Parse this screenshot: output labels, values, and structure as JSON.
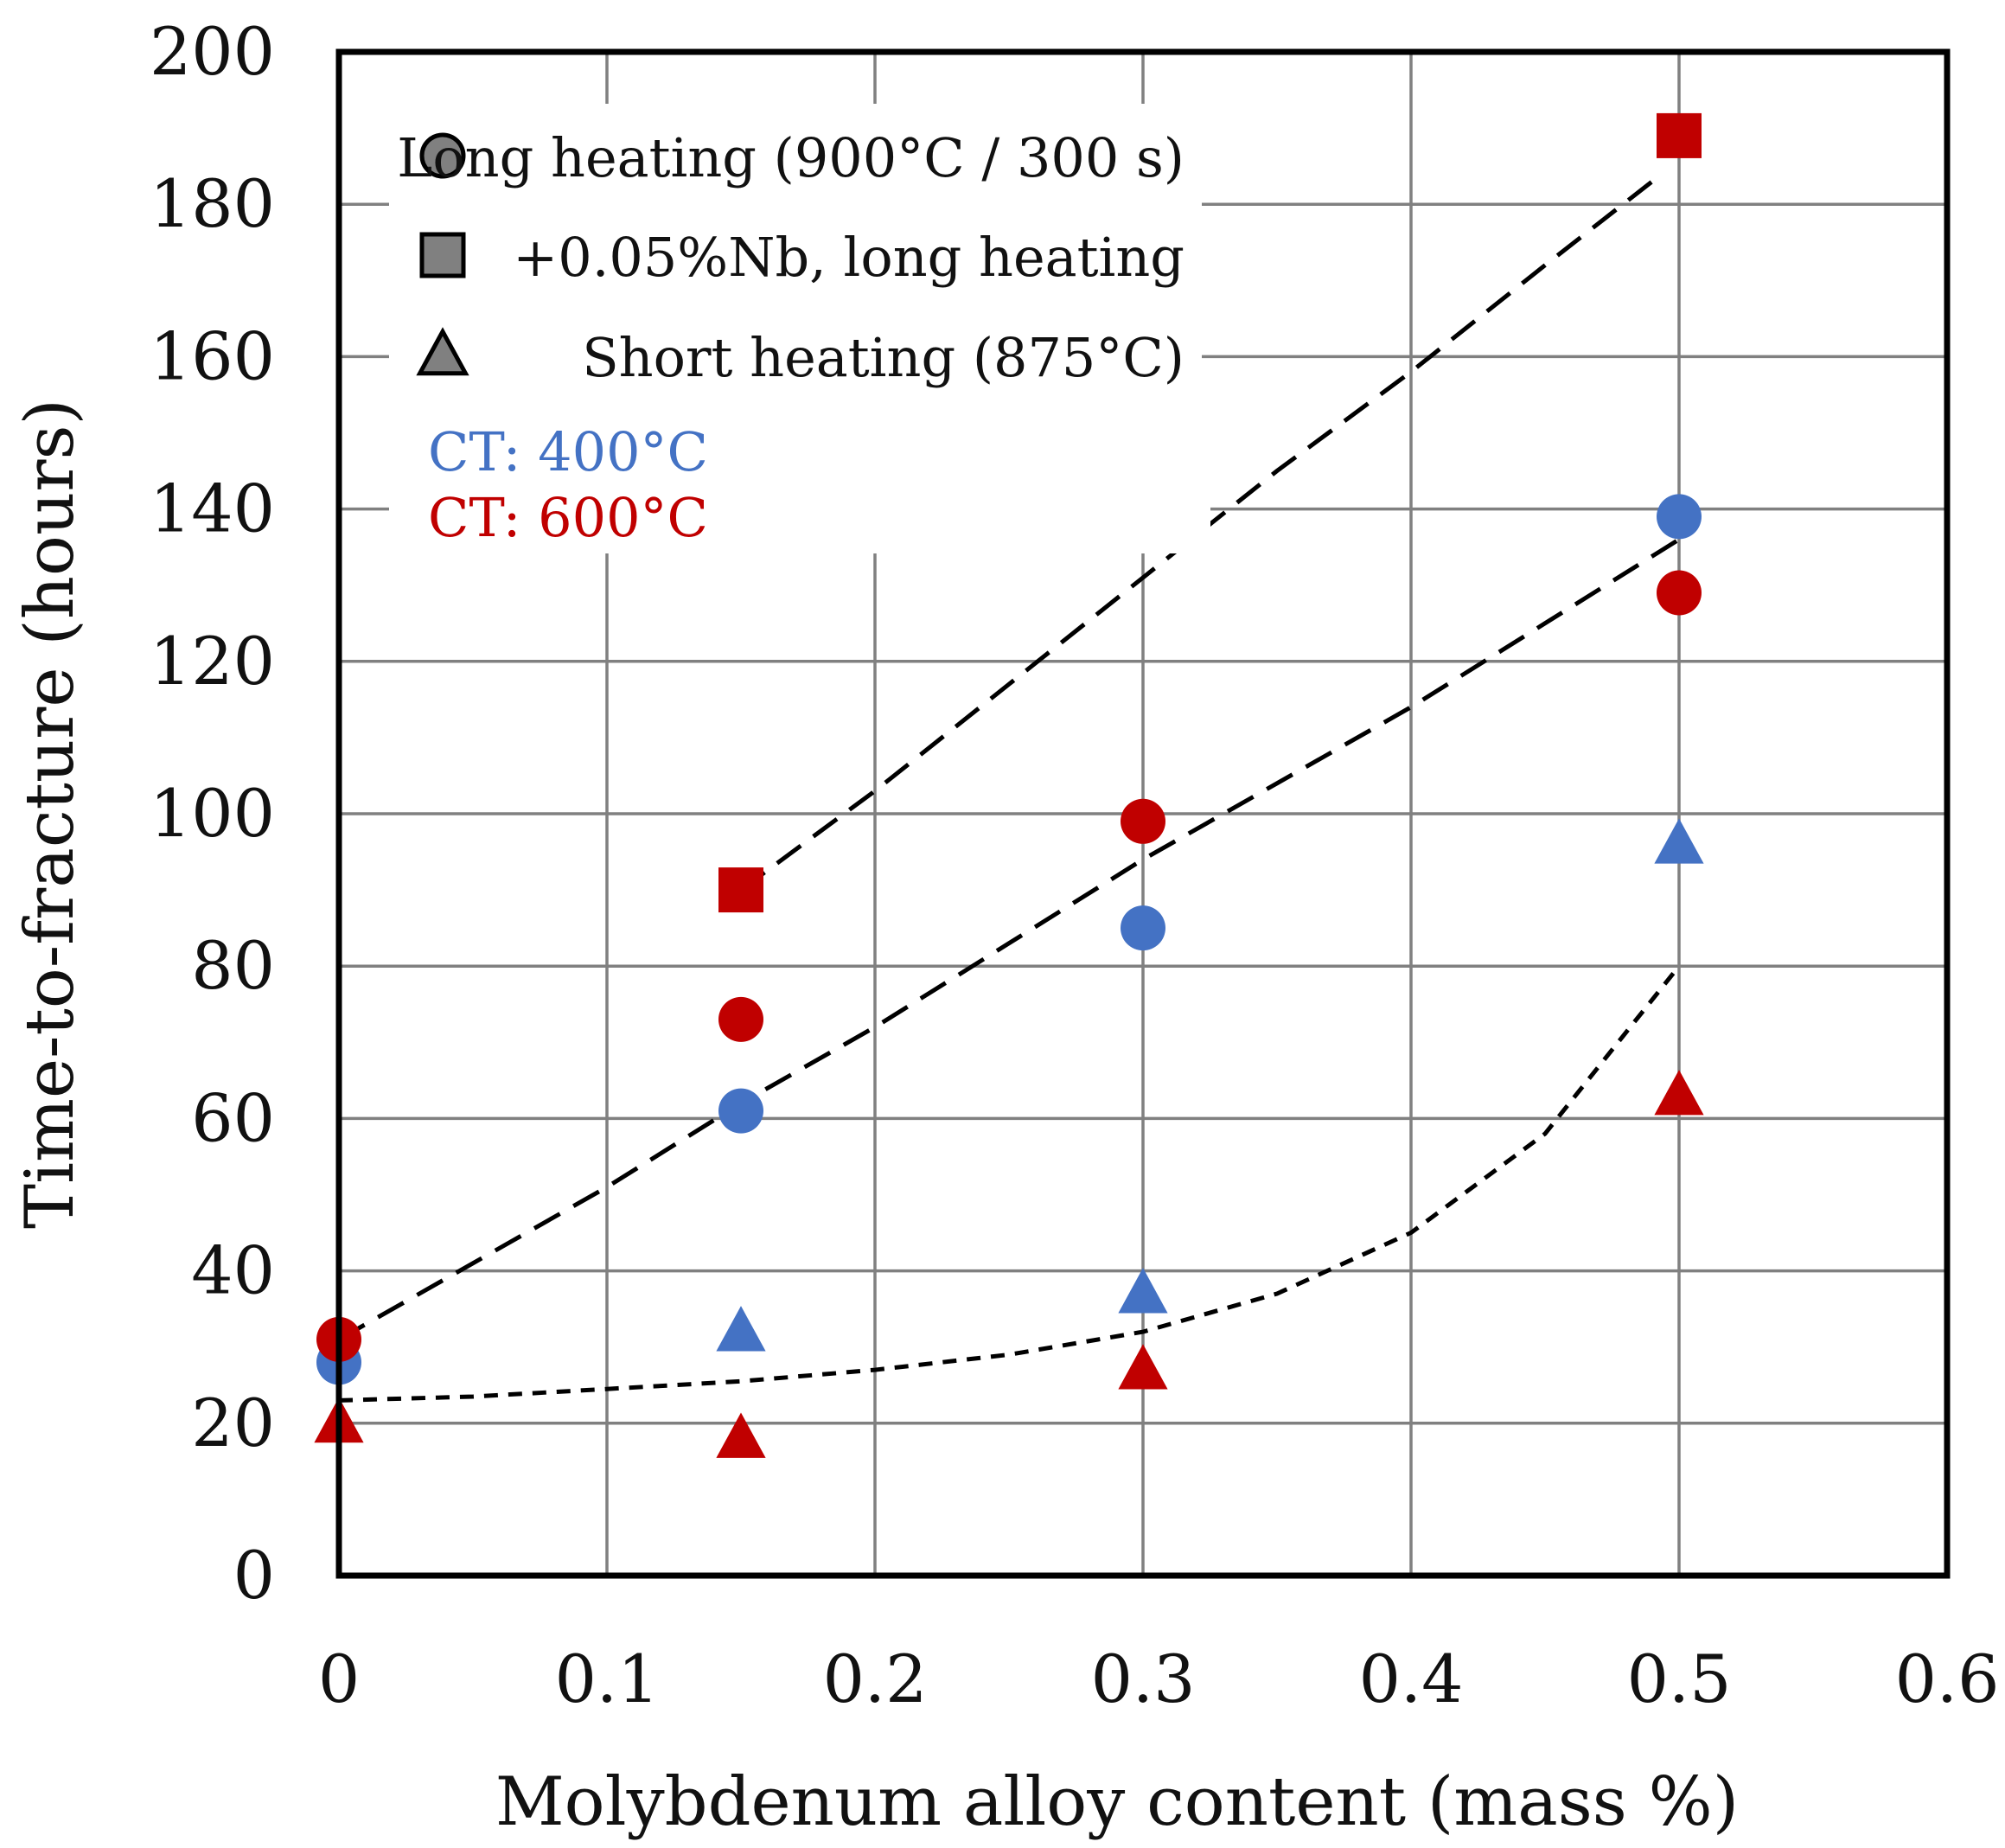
{
  "chart_data": {
    "type": "scatter",
    "title": "",
    "xlabel": "Molybdenum alloy content (mass %)",
    "ylabel": "Time-to-fracture (hours)",
    "xlim": [
      0,
      0.6
    ],
    "ylim": [
      0,
      200
    ],
    "x_ticks": [
      0,
      0.1,
      0.2,
      0.3,
      0.4,
      0.5,
      0.6
    ],
    "x_tick_labels": [
      "0",
      "0.1",
      "0.2",
      "0.3",
      "0.4",
      "0.5",
      "0.6"
    ],
    "y_ticks": [
      0,
      20,
      40,
      60,
      80,
      100,
      120,
      140,
      160,
      180,
      200
    ],
    "y_tick_labels": [
      "0",
      "20",
      "40",
      "60",
      "80",
      "100",
      "120",
      "140",
      "160",
      "180",
      "200"
    ],
    "grid": true,
    "legend_position": "top-left",
    "legend": [
      {
        "marker": "circle",
        "label": "Long heating (900°C / 300 s)"
      },
      {
        "marker": "square",
        "label": "+0.05%Nb, long heating"
      },
      {
        "marker": "triangle",
        "label": "Short heating (875°C)"
      }
    ],
    "color_legend": [
      {
        "label": "CT: 400°C",
        "color": "#4472c4"
      },
      {
        "label": "CT: 600°C",
        "color": "#c00000"
      }
    ],
    "series": [
      {
        "name": "Long heating, CT 400°C",
        "marker": "circle",
        "color": "#4472c4",
        "x": [
          0,
          0.15,
          0.3,
          0.5
        ],
        "y": [
          28,
          61,
          85,
          139
        ]
      },
      {
        "name": "Long heating, CT 600°C",
        "marker": "circle",
        "color": "#c00000",
        "x": [
          0,
          0.15,
          0.3,
          0.5
        ],
        "y": [
          31,
          73,
          99,
          129
        ]
      },
      {
        "name": "+0.05%Nb, long heating, CT 600°C",
        "marker": "square",
        "color": "#c00000",
        "x": [
          0.15,
          0.5
        ],
        "y": [
          90,
          189
        ]
      },
      {
        "name": "Short heating, CT 400°C",
        "marker": "triangle",
        "color": "#4472c4",
        "x": [
          0.15,
          0.3,
          0.5
        ],
        "y": [
          32,
          37,
          96
        ]
      },
      {
        "name": "Short heating, CT 600°C",
        "marker": "triangle",
        "color": "#c00000",
        "x": [
          0,
          0.15,
          0.3,
          0.5
        ],
        "y": [
          20,
          18,
          27,
          63
        ]
      }
    ],
    "trendlines": [
      {
        "name": "Nb trend",
        "style": "long-dash",
        "x": [
          0.15,
          0.2,
          0.25,
          0.3,
          0.35,
          0.4,
          0.45,
          0.49
        ],
        "y": [
          90,
          103,
          117,
          131,
          145,
          158,
          172,
          183
        ]
      },
      {
        "name": "long heating trend",
        "style": "long-dash",
        "x": [
          0,
          0.05,
          0.1,
          0.15,
          0.2,
          0.25,
          0.3,
          0.35,
          0.4,
          0.45,
          0.5
        ],
        "y": [
          31,
          41,
          51,
          62,
          72,
          83,
          94,
          104,
          114,
          125,
          136
        ]
      },
      {
        "name": "short heating trend",
        "style": "short-dash",
        "x": [
          0,
          0.05,
          0.1,
          0.15,
          0.2,
          0.25,
          0.3,
          0.35,
          0.4,
          0.45,
          0.5
        ],
        "y": [
          23,
          23.5,
          24.5,
          25.5,
          27,
          29,
          32,
          37,
          45,
          58,
          80
        ]
      }
    ],
    "colors": {
      "axis": "#000000",
      "grid": "#808080",
      "trend": "#000000",
      "legend_marker": "#808080"
    }
  }
}
